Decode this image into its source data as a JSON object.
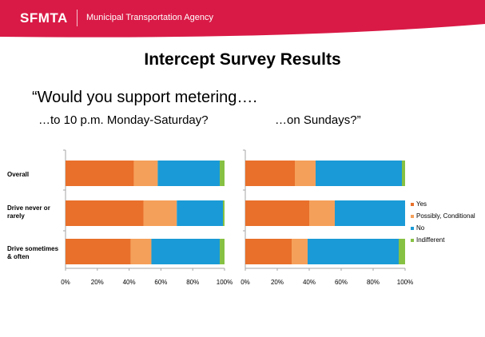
{
  "header": {
    "brand": "SFMTA",
    "agency": "Municipal Transportation Agency",
    "color": "#d91a46"
  },
  "title": "Intercept Survey Results",
  "question": "“Would you support metering….",
  "subtitle_left": "…to 10 p.m. Monday-Saturday?",
  "subtitle_right": "…on Sundays?”",
  "legend": [
    {
      "name": "Yes",
      "color": "#e8702a"
    },
    {
      "name": "Possibly, Conditional",
      "color": "#f5a05a"
    },
    {
      "name": "No",
      "color": "#1a9ad6"
    },
    {
      "name": "Indifferent",
      "color": "#86c143"
    }
  ],
  "chart_data": [
    {
      "type": "bar",
      "orientation": "horizontal",
      "stacked": true,
      "categories": [
        "Overall",
        "Drive never or rarely",
        "Drive sometimes & often"
      ],
      "series": [
        {
          "name": "Yes",
          "values": [
            43,
            49,
            41
          ]
        },
        {
          "name": "Possibly, Conditional",
          "values": [
            15,
            21,
            13
          ]
        },
        {
          "name": "No",
          "values": [
            39,
            29,
            43
          ]
        },
        {
          "name": "Indifferent",
          "values": [
            3,
            1,
            3
          ]
        }
      ],
      "xlim": [
        0,
        100
      ],
      "xticks": [
        "0%",
        "20%",
        "40%",
        "60%",
        "80%",
        "100%"
      ],
      "grid": false
    },
    {
      "type": "bar",
      "orientation": "horizontal",
      "stacked": true,
      "categories": [
        "Overall",
        "Drive never or rarely",
        "Drive sometimes & often"
      ],
      "series": [
        {
          "name": "Yes",
          "values": [
            31,
            40,
            29
          ]
        },
        {
          "name": "Possibly, Conditional",
          "values": [
            13,
            16,
            10
          ]
        },
        {
          "name": "No",
          "values": [
            54,
            44,
            57
          ]
        },
        {
          "name": "Indifferent",
          "values": [
            2,
            0,
            4
          ]
        }
      ],
      "xlim": [
        0,
        100
      ],
      "xticks": [
        "0%",
        "20%",
        "40%",
        "60%",
        "80%",
        "100%"
      ],
      "legend": "right",
      "grid": false
    }
  ]
}
